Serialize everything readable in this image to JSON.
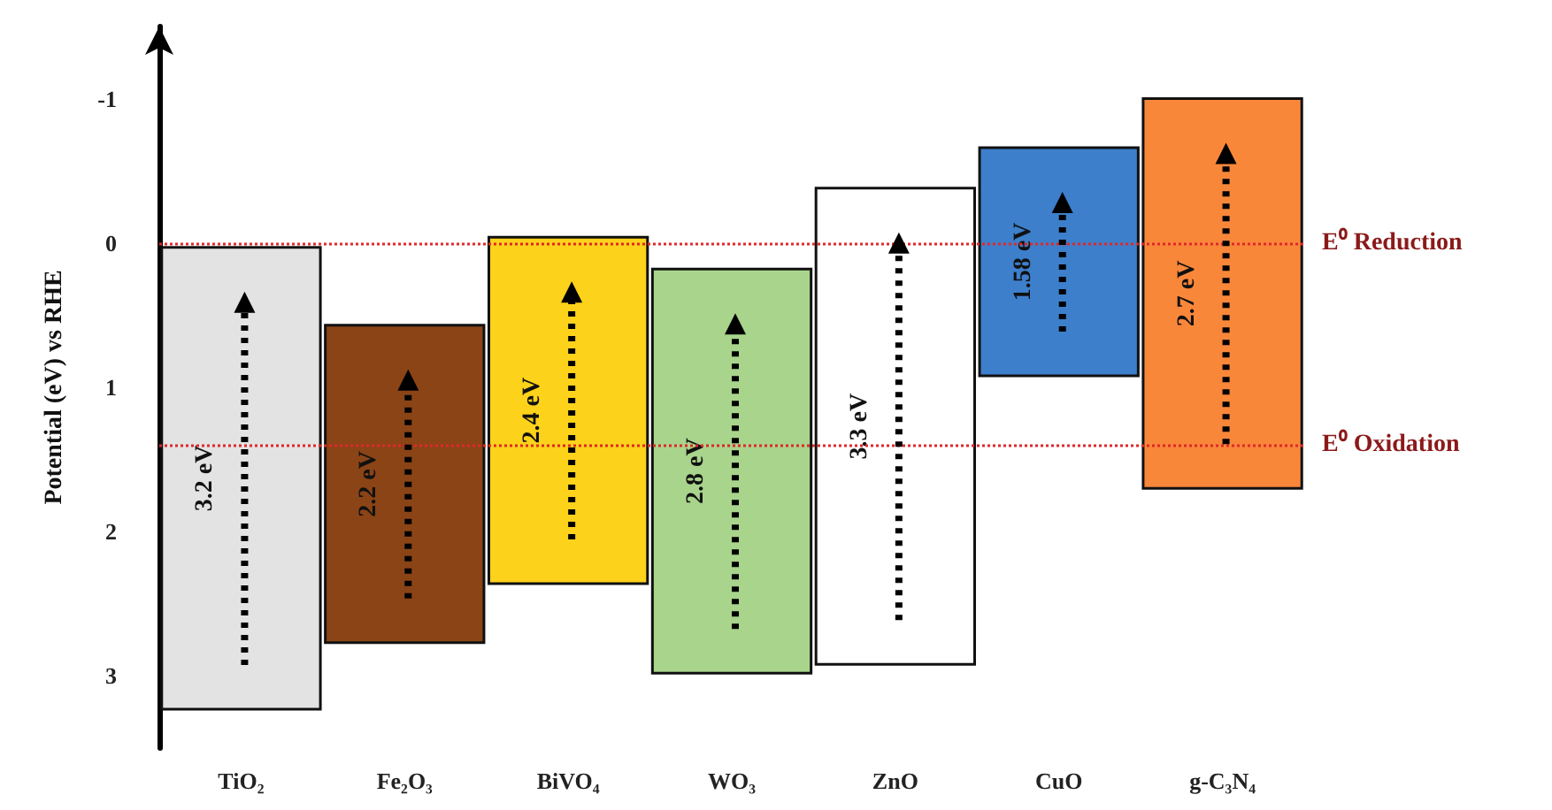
{
  "chart_data": {
    "type": "bar",
    "ylabel": "Potential (eV) vs RHE",
    "categories": [
      "TiO₂",
      "Fe₂O₃",
      "BiVO₄",
      "WO₃",
      "ZnO",
      "CuO",
      "g-C₃N₄"
    ],
    "base": [
      0.03,
      0.57,
      -0.04,
      0.18,
      -0.38,
      -0.66,
      -1.0
    ],
    "values": [
      3.2,
      2.2,
      2.4,
      2.8,
      3.3,
      1.58,
      2.7
    ],
    "value_labels": [
      "3.2 eV",
      "2.2 eV",
      "2.4 eV",
      "2.8 eV",
      "3.3 eV",
      "1.58 eV",
      "2.7 eV"
    ],
    "colors": [
      "#e3e3e3",
      "#8a4416",
      "#fdd21a",
      "#a9d48c",
      "#ffffff",
      "#3d7fcb",
      "#f9873a"
    ],
    "ylim": [
      3.5,
      -1.5
    ],
    "yticks": [
      -1,
      0,
      1,
      2,
      3
    ],
    "ref_lines": [
      {
        "axis": "y",
        "value": 0,
        "label": "E⁰ Reduction",
        "color": "#e02828",
        "line_style": "dotted"
      },
      {
        "axis": "y",
        "value": 1.4,
        "label": "E⁰ Oxidation",
        "color": "#e02828",
        "line_style": "dotted"
      }
    ],
    "grid": false
  }
}
